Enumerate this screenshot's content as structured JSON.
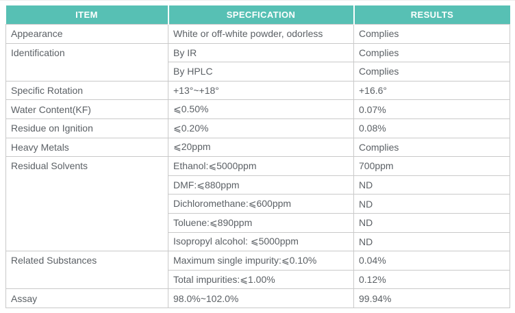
{
  "table": {
    "accent_color": "#57c0b4",
    "border_color": "#c9c9c9",
    "text_color": "#5b6065",
    "header": {
      "columns": [
        "ITEM",
        "SPECFICATION",
        "RESULTS"
      ]
    },
    "rows": [
      {
        "item": "Appearance",
        "spec": "White or off-white powder, odorless",
        "result": "Complies"
      },
      {
        "item": "Identification",
        "spec": "By IR",
        "result": "Complies"
      },
      {
        "spec": "By HPLC",
        "result": "Complies"
      },
      {
        "item": "Specific Rotation",
        "spec": "+13°~+18°",
        "result": "+16.6°"
      },
      {
        "item": "Water Content(KF)",
        "spec": "⩽0.50%",
        "result": "0.07%"
      },
      {
        "item": "Residue on Ignition",
        "spec": "⩽0.20%",
        "result": "0.08%"
      },
      {
        "item": "Heavy Metals",
        "spec": "⩽20ppm",
        "result": "Complies"
      },
      {
        "item": "Residual Solvents",
        "spec": "Ethanol:⩽5000ppm",
        "result": "700ppm"
      },
      {
        "spec": "DMF:⩽880ppm",
        "result": "ND"
      },
      {
        "spec": "Dichloromethane:⩽600ppm",
        "result": "ND"
      },
      {
        "spec": "Toluene:⩽890ppm",
        "result": "ND"
      },
      {
        "spec": "Isopropyl alcohol: ⩽5000ppm",
        "result": "ND"
      },
      {
        "item": "Related Substances",
        "spec": "Maximum single impurity:⩽0.10%",
        "result": "0.04%"
      },
      {
        "spec": "Total impurities:⩽1.00%",
        "result": "0.12%"
      },
      {
        "item": "Assay",
        "spec": "98.0%~102.0%",
        "result": "99.94%"
      }
    ]
  }
}
